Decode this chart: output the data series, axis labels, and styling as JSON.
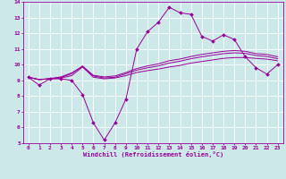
{
  "xlabel": "Windchill (Refroidissement éolien,°C)",
  "background_color": "#cce8e8",
  "grid_color": "#ffffff",
  "line_color": "#990099",
  "xlim": [
    -0.5,
    23.5
  ],
  "ylim": [
    5,
    14
  ],
  "xticks": [
    0,
    1,
    2,
    3,
    4,
    5,
    6,
    7,
    8,
    9,
    10,
    11,
    12,
    13,
    14,
    15,
    16,
    17,
    18,
    19,
    20,
    21,
    22,
    23
  ],
  "yticks": [
    5,
    6,
    7,
    8,
    9,
    10,
    11,
    12,
    13,
    14
  ],
  "line0": [
    9.2,
    8.7,
    9.1,
    9.1,
    9.0,
    8.1,
    6.3,
    5.2,
    6.3,
    7.8,
    11.0,
    12.1,
    12.7,
    13.65,
    13.3,
    13.2,
    11.8,
    11.5,
    11.9,
    11.6,
    10.5,
    9.8,
    9.4,
    10.0
  ],
  "line1": [
    9.2,
    9.05,
    9.1,
    9.15,
    9.3,
    9.85,
    9.2,
    9.1,
    9.15,
    9.3,
    9.5,
    9.62,
    9.72,
    9.85,
    9.95,
    10.1,
    10.2,
    10.3,
    10.4,
    10.45,
    10.45,
    10.4,
    10.35,
    10.25
  ],
  "line2": [
    9.2,
    9.05,
    9.1,
    9.18,
    9.42,
    9.92,
    9.28,
    9.15,
    9.2,
    9.42,
    9.65,
    9.8,
    9.92,
    10.1,
    10.22,
    10.38,
    10.5,
    10.6,
    10.7,
    10.75,
    10.72,
    10.58,
    10.52,
    10.38
  ],
  "line3": [
    9.2,
    9.05,
    9.12,
    9.22,
    9.48,
    9.88,
    9.32,
    9.22,
    9.28,
    9.5,
    9.75,
    9.92,
    10.05,
    10.25,
    10.36,
    10.52,
    10.65,
    10.75,
    10.85,
    10.9,
    10.85,
    10.7,
    10.65,
    10.5
  ]
}
